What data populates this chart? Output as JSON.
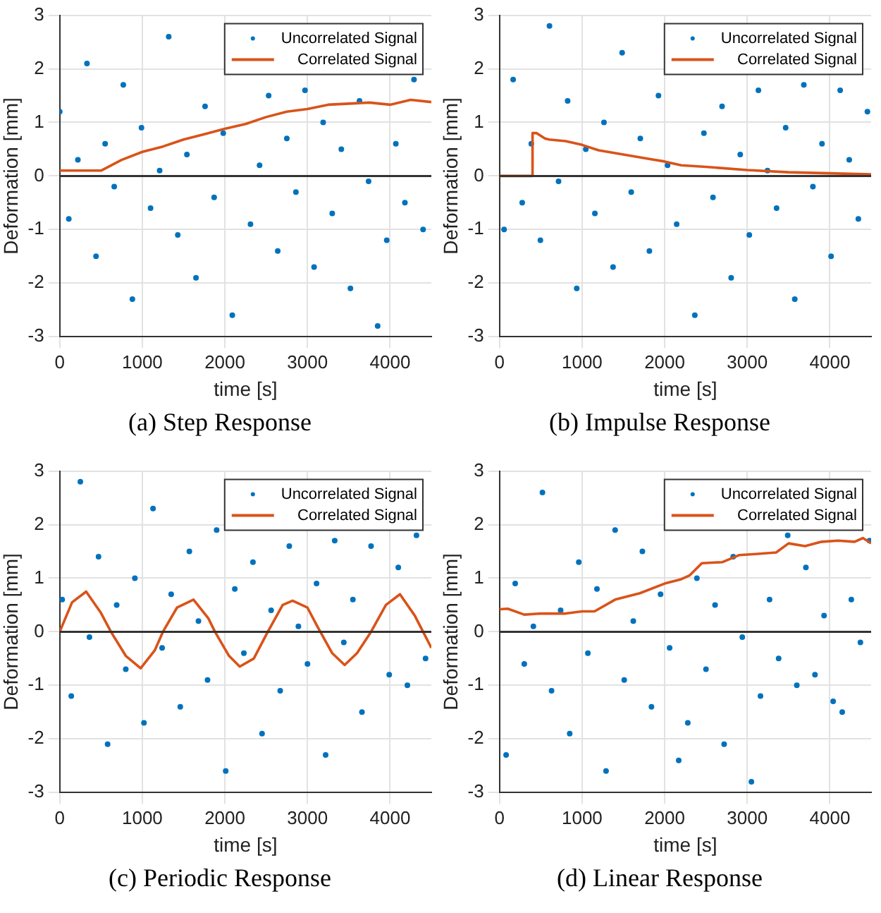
{
  "chart_data": [
    {
      "type": "scatter",
      "title": "(a) Step Response",
      "xlabel": "time [s]",
      "ylabel": "Deformation [mm]",
      "xlim": [
        0,
        4500
      ],
      "xticks": [
        0,
        1000,
        2000,
        3000,
        4000
      ],
      "ylim": [
        -3,
        3
      ],
      "yticks": [
        -3,
        -2,
        -1,
        0,
        1,
        2,
        3
      ],
      "grid": true,
      "legend": "top right",
      "ref_lines": [
        {
          "axis": "y",
          "value": 0,
          "color": "#333333"
        }
      ],
      "series": [
        {
          "name": "Uncorrelated Signal",
          "type": "scatter",
          "marker": "circle",
          "color": "#0072bd",
          "x": [
            0,
            110,
            220,
            330,
            440,
            550,
            660,
            770,
            880,
            990,
            1100,
            1210,
            1320,
            1430,
            1540,
            1650,
            1760,
            1870,
            1980,
            2090,
            2200,
            2310,
            2420,
            2530,
            2640,
            2750,
            2860,
            2970,
            3080,
            3190,
            3300,
            3410,
            3520,
            3630,
            3740,
            3850,
            3960,
            4070,
            4180,
            4290,
            4400
          ],
          "values": [
            1.2,
            -0.8,
            0.3,
            2.1,
            -1.5,
            0.6,
            -0.2,
            1.7,
            -2.3,
            0.9,
            -0.6,
            0.1,
            2.6,
            -1.1,
            0.4,
            -1.9,
            1.3,
            -0.4,
            0.8,
            -2.6,
            null,
            -0.9,
            0.2,
            1.5,
            -1.4,
            0.7,
            -0.3,
            1.6,
            -1.7,
            1.0,
            -0.7,
            0.5,
            -2.1,
            1.4,
            -0.1,
            -2.8,
            -1.2,
            0.6,
            -0.5,
            1.8,
            -1.0
          ]
        },
        {
          "name": "Correlated Signal",
          "type": "line",
          "marker": "none",
          "color": "#d95319",
          "x": [
            0,
            250,
            500,
            750,
            1000,
            1250,
            1500,
            1750,
            2000,
            2250,
            2500,
            2750,
            3000,
            3250,
            3500,
            3750,
            4000,
            4250,
            4500
          ],
          "values": [
            0.1,
            0.1,
            0.1,
            0.3,
            0.45,
            0.55,
            0.68,
            0.78,
            0.88,
            0.97,
            1.1,
            1.2,
            1.25,
            1.33,
            1.35,
            1.37,
            1.33,
            1.42,
            1.38
          ]
        }
      ]
    },
    {
      "type": "scatter",
      "title": "(b) Impulse Response",
      "xlabel": "time [s]",
      "ylabel": "Deformation [mm]",
      "xlim": [
        0,
        4500
      ],
      "xticks": [
        0,
        1000,
        2000,
        3000,
        4000
      ],
      "ylim": [
        -3,
        3
      ],
      "yticks": [
        -3,
        -2,
        -1,
        0,
        1,
        2,
        3
      ],
      "grid": true,
      "legend": "top right",
      "ref_lines": [
        {
          "axis": "y",
          "value": 0,
          "color": "#333333"
        }
      ],
      "series": [
        {
          "name": "Uncorrelated Signal",
          "type": "scatter",
          "marker": "circle",
          "color": "#0072bd",
          "x": [
            55,
            165,
            275,
            385,
            495,
            605,
            715,
            825,
            935,
            1045,
            1155,
            1265,
            1375,
            1485,
            1595,
            1705,
            1815,
            1925,
            2035,
            2145,
            2255,
            2365,
            2475,
            2585,
            2695,
            2805,
            2915,
            3025,
            3135,
            3245,
            3355,
            3465,
            3575,
            3685,
            3795,
            3905,
            4015,
            4125,
            4235,
            4345,
            4455
          ],
          "values": [
            -1.0,
            1.8,
            -0.5,
            0.6,
            -1.2,
            2.8,
            -0.1,
            1.4,
            -2.1,
            0.5,
            -0.7,
            1.0,
            -1.7,
            2.3,
            -0.3,
            0.7,
            -1.4,
            1.5,
            0.2,
            -0.9,
            null,
            -2.6,
            0.8,
            -0.4,
            1.3,
            -1.9,
            0.4,
            -1.1,
            1.6,
            0.1,
            -0.6,
            0.9,
            -2.3,
            1.7,
            -0.2,
            0.6,
            -1.5,
            1.6,
            0.3,
            -0.8,
            1.2
          ]
        },
        {
          "name": "Correlated Signal",
          "type": "line",
          "marker": "none",
          "color": "#d95319",
          "x": [
            0,
            390,
            400,
            450,
            550,
            600,
            800,
            1000,
            1200,
            1500,
            1800,
            2000,
            2200,
            2500,
            3000,
            3500,
            4000,
            4500
          ],
          "values": [
            0,
            0,
            0.8,
            0.8,
            0.7,
            0.68,
            0.65,
            0.58,
            0.48,
            0.4,
            0.32,
            0.27,
            0.2,
            0.17,
            0.11,
            0.07,
            0.05,
            0.03
          ]
        }
      ]
    },
    {
      "type": "scatter",
      "title": "(c) Periodic Response",
      "xlabel": "time [s]",
      "ylabel": "Deformation [mm]",
      "xlim": [
        0,
        4500
      ],
      "xticks": [
        0,
        1000,
        2000,
        3000,
        4000
      ],
      "ylim": [
        -3,
        3
      ],
      "yticks": [
        -3,
        -2,
        -1,
        0,
        1,
        2,
        3
      ],
      "grid": true,
      "legend": "top right",
      "ref_lines": [
        {
          "axis": "y",
          "value": 0,
          "color": "#333333"
        }
      ],
      "series": [
        {
          "name": "Uncorrelated Signal",
          "type": "scatter",
          "marker": "circle",
          "color": "#0072bd",
          "x": [
            30,
            140,
            250,
            360,
            470,
            580,
            690,
            800,
            910,
            1020,
            1130,
            1240,
            1350,
            1460,
            1570,
            1680,
            1790,
            1900,
            2010,
            2120,
            2230,
            2340,
            2450,
            2560,
            2670,
            2780,
            2890,
            3000,
            3110,
            3220,
            3330,
            3440,
            3550,
            3660,
            3770,
            3880,
            3990,
            4100,
            4210,
            4320,
            4430
          ],
          "values": [
            0.6,
            -1.2,
            2.8,
            -0.1,
            1.4,
            -2.1,
            0.5,
            -0.7,
            1.0,
            -1.7,
            2.3,
            -0.3,
            0.7,
            -1.4,
            1.5,
            0.2,
            -0.9,
            1.9,
            -2.6,
            0.8,
            -0.4,
            1.3,
            -1.9,
            0.4,
            -1.1,
            1.6,
            0.1,
            -0.6,
            0.9,
            -2.3,
            1.7,
            -0.2,
            0.6,
            -1.5,
            1.6,
            null,
            -0.8,
            1.2,
            -1.0,
            1.8,
            -0.5
          ]
        },
        {
          "name": "Correlated Signal",
          "type": "line",
          "marker": "none",
          "color": "#d95319",
          "x": [
            0,
            150,
            320,
            500,
            620,
            800,
            980,
            1150,
            1250,
            1420,
            1620,
            1800,
            1880,
            2050,
            2180,
            2350,
            2520,
            2700,
            2820,
            3000,
            3120,
            3300,
            3450,
            3600,
            3770,
            3950,
            4120,
            4300,
            4500
          ],
          "values": [
            0,
            0.55,
            0.75,
            0.35,
            0,
            -0.45,
            -0.68,
            -0.35,
            0,
            0.45,
            0.6,
            0.25,
            0,
            -0.45,
            -0.65,
            -0.5,
            0,
            0.5,
            0.58,
            0.45,
            0.1,
            -0.4,
            -0.62,
            -0.4,
            0,
            0.5,
            0.7,
            0.3,
            -0.3
          ]
        }
      ]
    },
    {
      "type": "scatter",
      "title": "(d) Linear Response",
      "xlabel": "time [s]",
      "ylabel": "Deformation [mm]",
      "xlim": [
        0,
        4500
      ],
      "xticks": [
        0,
        1000,
        2000,
        3000,
        4000
      ],
      "ylim": [
        -3,
        3
      ],
      "yticks": [
        -3,
        -2,
        -1,
        0,
        1,
        2,
        3
      ],
      "grid": true,
      "legend": "top right",
      "ref_lines": [
        {
          "axis": "y",
          "value": 0,
          "color": "#333333"
        }
      ],
      "series": [
        {
          "name": "Uncorrelated Signal",
          "type": "scatter",
          "marker": "circle",
          "color": "#0072bd",
          "x": [
            80,
            190,
            300,
            410,
            520,
            630,
            740,
            850,
            960,
            1070,
            1180,
            1290,
            1400,
            1510,
            1620,
            1730,
            1840,
            1950,
            2060,
            2170,
            2280,
            2390,
            2500,
            2610,
            2720,
            2830,
            2940,
            3050,
            3160,
            3270,
            3380,
            3490,
            3600,
            3710,
            3820,
            3930,
            4040,
            4150,
            4260,
            4370,
            4480
          ],
          "values": [
            -2.3,
            0.9,
            -0.6,
            0.1,
            2.6,
            -1.1,
            0.4,
            -1.9,
            1.3,
            -0.4,
            0.8,
            -2.6,
            1.9,
            -0.9,
            0.2,
            1.5,
            -1.4,
            0.7,
            -0.3,
            -2.4,
            -1.7,
            1.0,
            -0.7,
            0.5,
            -2.1,
            1.4,
            -0.1,
            -2.8,
            -1.2,
            0.6,
            -0.5,
            1.8,
            -1.0,
            1.2,
            -0.8,
            0.3,
            -1.3,
            -1.5,
            0.6,
            -0.2,
            1.7
          ]
        },
        {
          "name": "Correlated Signal",
          "type": "line",
          "marker": "none",
          "color": "#d95319",
          "x": [
            0,
            100,
            300,
            500,
            800,
            1000,
            1150,
            1400,
            1700,
            2000,
            2200,
            2300,
            2450,
            2700,
            2900,
            3100,
            3350,
            3500,
            3700,
            3900,
            4100,
            4300,
            4400,
            4500
          ],
          "values": [
            0.42,
            0.43,
            0.32,
            0.34,
            0.34,
            0.38,
            0.38,
            0.6,
            0.72,
            0.9,
            0.98,
            1.05,
            1.28,
            1.3,
            1.43,
            1.45,
            1.48,
            1.65,
            1.6,
            1.68,
            1.7,
            1.68,
            1.75,
            1.65
          ]
        }
      ]
    }
  ]
}
